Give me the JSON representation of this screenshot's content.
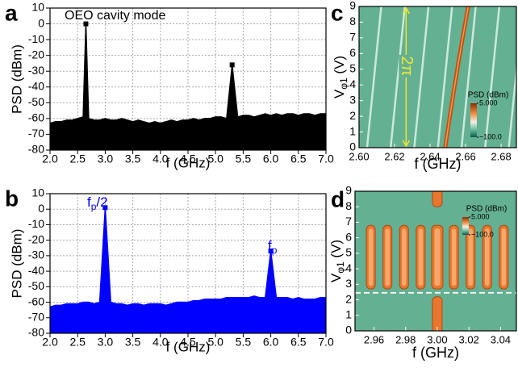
{
  "chart_data": [
    {
      "type": "area",
      "panel": "a",
      "annotation": "OEO cavity mode",
      "xlabel": "f (GHz)",
      "ylabel": "PSD (dBm)",
      "color": "#000000",
      "grid": true,
      "x": [
        2,
        2.1,
        2.2,
        2.3,
        2.4,
        2.5,
        2.6,
        2.65,
        2.7,
        2.8,
        2.9,
        3,
        3.1,
        3.2,
        3.3,
        3.4,
        3.5,
        3.6,
        3.7,
        3.8,
        3.9,
        4,
        4.1,
        4.2,
        4.3,
        4.4,
        4.5,
        4.6,
        4.7,
        4.8,
        4.9,
        5,
        5.1,
        5.2,
        5.3,
        5.4,
        5.5,
        5.6,
        5.7,
        5.8,
        5.9,
        6,
        6.1,
        6.2,
        6.3,
        6.4,
        6.5,
        6.6,
        6.7,
        6.8,
        6.9,
        7
      ],
      "values": [
        -63,
        -62,
        -62,
        -61,
        -61,
        -60,
        -59,
        0,
        -60,
        -61,
        -61,
        -60,
        -61,
        -61,
        -60,
        -61,
        -62,
        -61,
        -62,
        -63,
        -62,
        -63,
        -62,
        -61,
        -62,
        -61,
        -61,
        -60,
        -61,
        -60,
        -60,
        -59,
        -59,
        -60,
        -26,
        -59,
        -58,
        -58,
        -59,
        -58,
        -57,
        -58,
        -57,
        -58,
        -57,
        -57,
        -58,
        -57,
        -57,
        -58,
        -57,
        -57
      ],
      "xlim": [
        2,
        7
      ],
      "ylim": [
        -80,
        10
      ],
      "xticks": [
        {
          "value": 2,
          "label": "2.0"
        },
        2.5,
        {
          "value": 3,
          "label": "3.0"
        },
        3.5,
        {
          "value": 4,
          "label": "4.0"
        },
        4.5,
        {
          "value": 5,
          "label": "5.0"
        },
        5.5,
        {
          "value": 6,
          "label": "6.0"
        },
        6.5,
        {
          "value": 7,
          "label": "7.0"
        }
      ],
      "yticks": [
        -80,
        -70,
        -60,
        -50,
        -40,
        -30,
        -20,
        -10,
        0,
        10
      ]
    },
    {
      "type": "area",
      "panel": "b",
      "annotations": [
        {
          "text": "f",
          "sub": "p",
          "tail": "/2"
        },
        {
          "text": "f",
          "sub": "p"
        }
      ],
      "xlabel": "f (GHz)",
      "ylabel": "PSD (dBm)",
      "color": "#0000ff",
      "grid": true,
      "x": [
        2,
        2.1,
        2.2,
        2.3,
        2.4,
        2.5,
        2.6,
        2.7,
        2.8,
        2.9,
        3,
        3.1,
        3.2,
        3.3,
        3.4,
        3.5,
        3.6,
        3.7,
        3.8,
        3.9,
        4,
        4.1,
        4.2,
        4.3,
        4.4,
        4.5,
        4.6,
        4.7,
        4.8,
        4.9,
        5,
        5.1,
        5.2,
        5.3,
        5.4,
        5.5,
        5.6,
        5.7,
        5.8,
        5.9,
        6,
        6.1,
        6.2,
        6.3,
        6.4,
        6.5,
        6.6,
        6.7,
        6.8,
        6.9,
        7
      ],
      "values": [
        -63,
        -62,
        -62,
        -61,
        -61,
        -61,
        -60,
        -60,
        -61,
        -60,
        1,
        -60,
        -61,
        -61,
        -62,
        -61,
        -61,
        -62,
        -61,
        -61,
        -61,
        -62,
        -61,
        -60,
        -60,
        -60,
        -59,
        -59,
        -58,
        -58,
        -58,
        -58,
        -57,
        -57,
        -57,
        -57,
        -57,
        -56,
        -57,
        -57,
        -27,
        -57,
        -57,
        -57,
        -58,
        -57,
        -58,
        -58,
        -58,
        -57,
        -57
      ],
      "xlim": [
        2,
        7
      ],
      "ylim": [
        -80,
        10
      ],
      "xticks": [
        {
          "value": 2,
          "label": "2.0"
        },
        2.5,
        {
          "value": 3,
          "label": "3.0"
        },
        3.5,
        {
          "value": 4,
          "label": "4.0"
        },
        4.5,
        {
          "value": 5,
          "label": "5.0"
        },
        5.5,
        {
          "value": 6,
          "label": "6.0"
        },
        6.5,
        {
          "value": 7,
          "label": "7.0"
        }
      ],
      "yticks": [
        -80,
        -70,
        -60,
        -50,
        -40,
        -30,
        -20,
        -10,
        0,
        10
      ]
    },
    {
      "type": "heatmap",
      "panel": "c",
      "annotation": "2π",
      "xlabel": "f (GHz)",
      "ylabel": {
        "text": "V",
        "sub": "φ1",
        "tail": " (V)"
      },
      "colorbar": {
        "title": "PSD (dBm)",
        "clim": [
          -100,
          5
        ],
        "ticks": [
          {
            "value": 5,
            "label": "5.000"
          },
          {
            "value": -100,
            "label": "−100.0"
          }
        ]
      },
      "xlim": [
        2.6,
        2.6886
      ],
      "ylim": [
        0,
        9
      ],
      "xticks": [
        {
          "value": 2.6,
          "label": "2.60"
        },
        2.62,
        2.64,
        2.66,
        2.68
      ],
      "yticks": [
        0,
        1,
        2,
        3,
        4,
        5,
        6,
        7,
        8,
        9
      ]
    },
    {
      "type": "heatmap",
      "panel": "d",
      "xlabel": "f (GHz)",
      "ylabel": {
        "text": "V",
        "sub": "φ1",
        "tail": " (V)"
      },
      "colorbar": {
        "title": "PSD (dBm)",
        "clim": [
          -100,
          5
        ],
        "ticks": [
          {
            "value": 5,
            "label": "5.000"
          },
          {
            "value": -100,
            "label": "−100.0"
          }
        ]
      },
      "xlim": [
        2.948,
        3.05
      ],
      "ylim": [
        0,
        9
      ],
      "xticks": [
        2.96,
        2.98,
        {
          "value": 3,
          "label": "3.00"
        },
        3.02,
        3.04
      ],
      "yticks": [
        0,
        1,
        2,
        3,
        4,
        5,
        6,
        7,
        8,
        9
      ]
    }
  ]
}
